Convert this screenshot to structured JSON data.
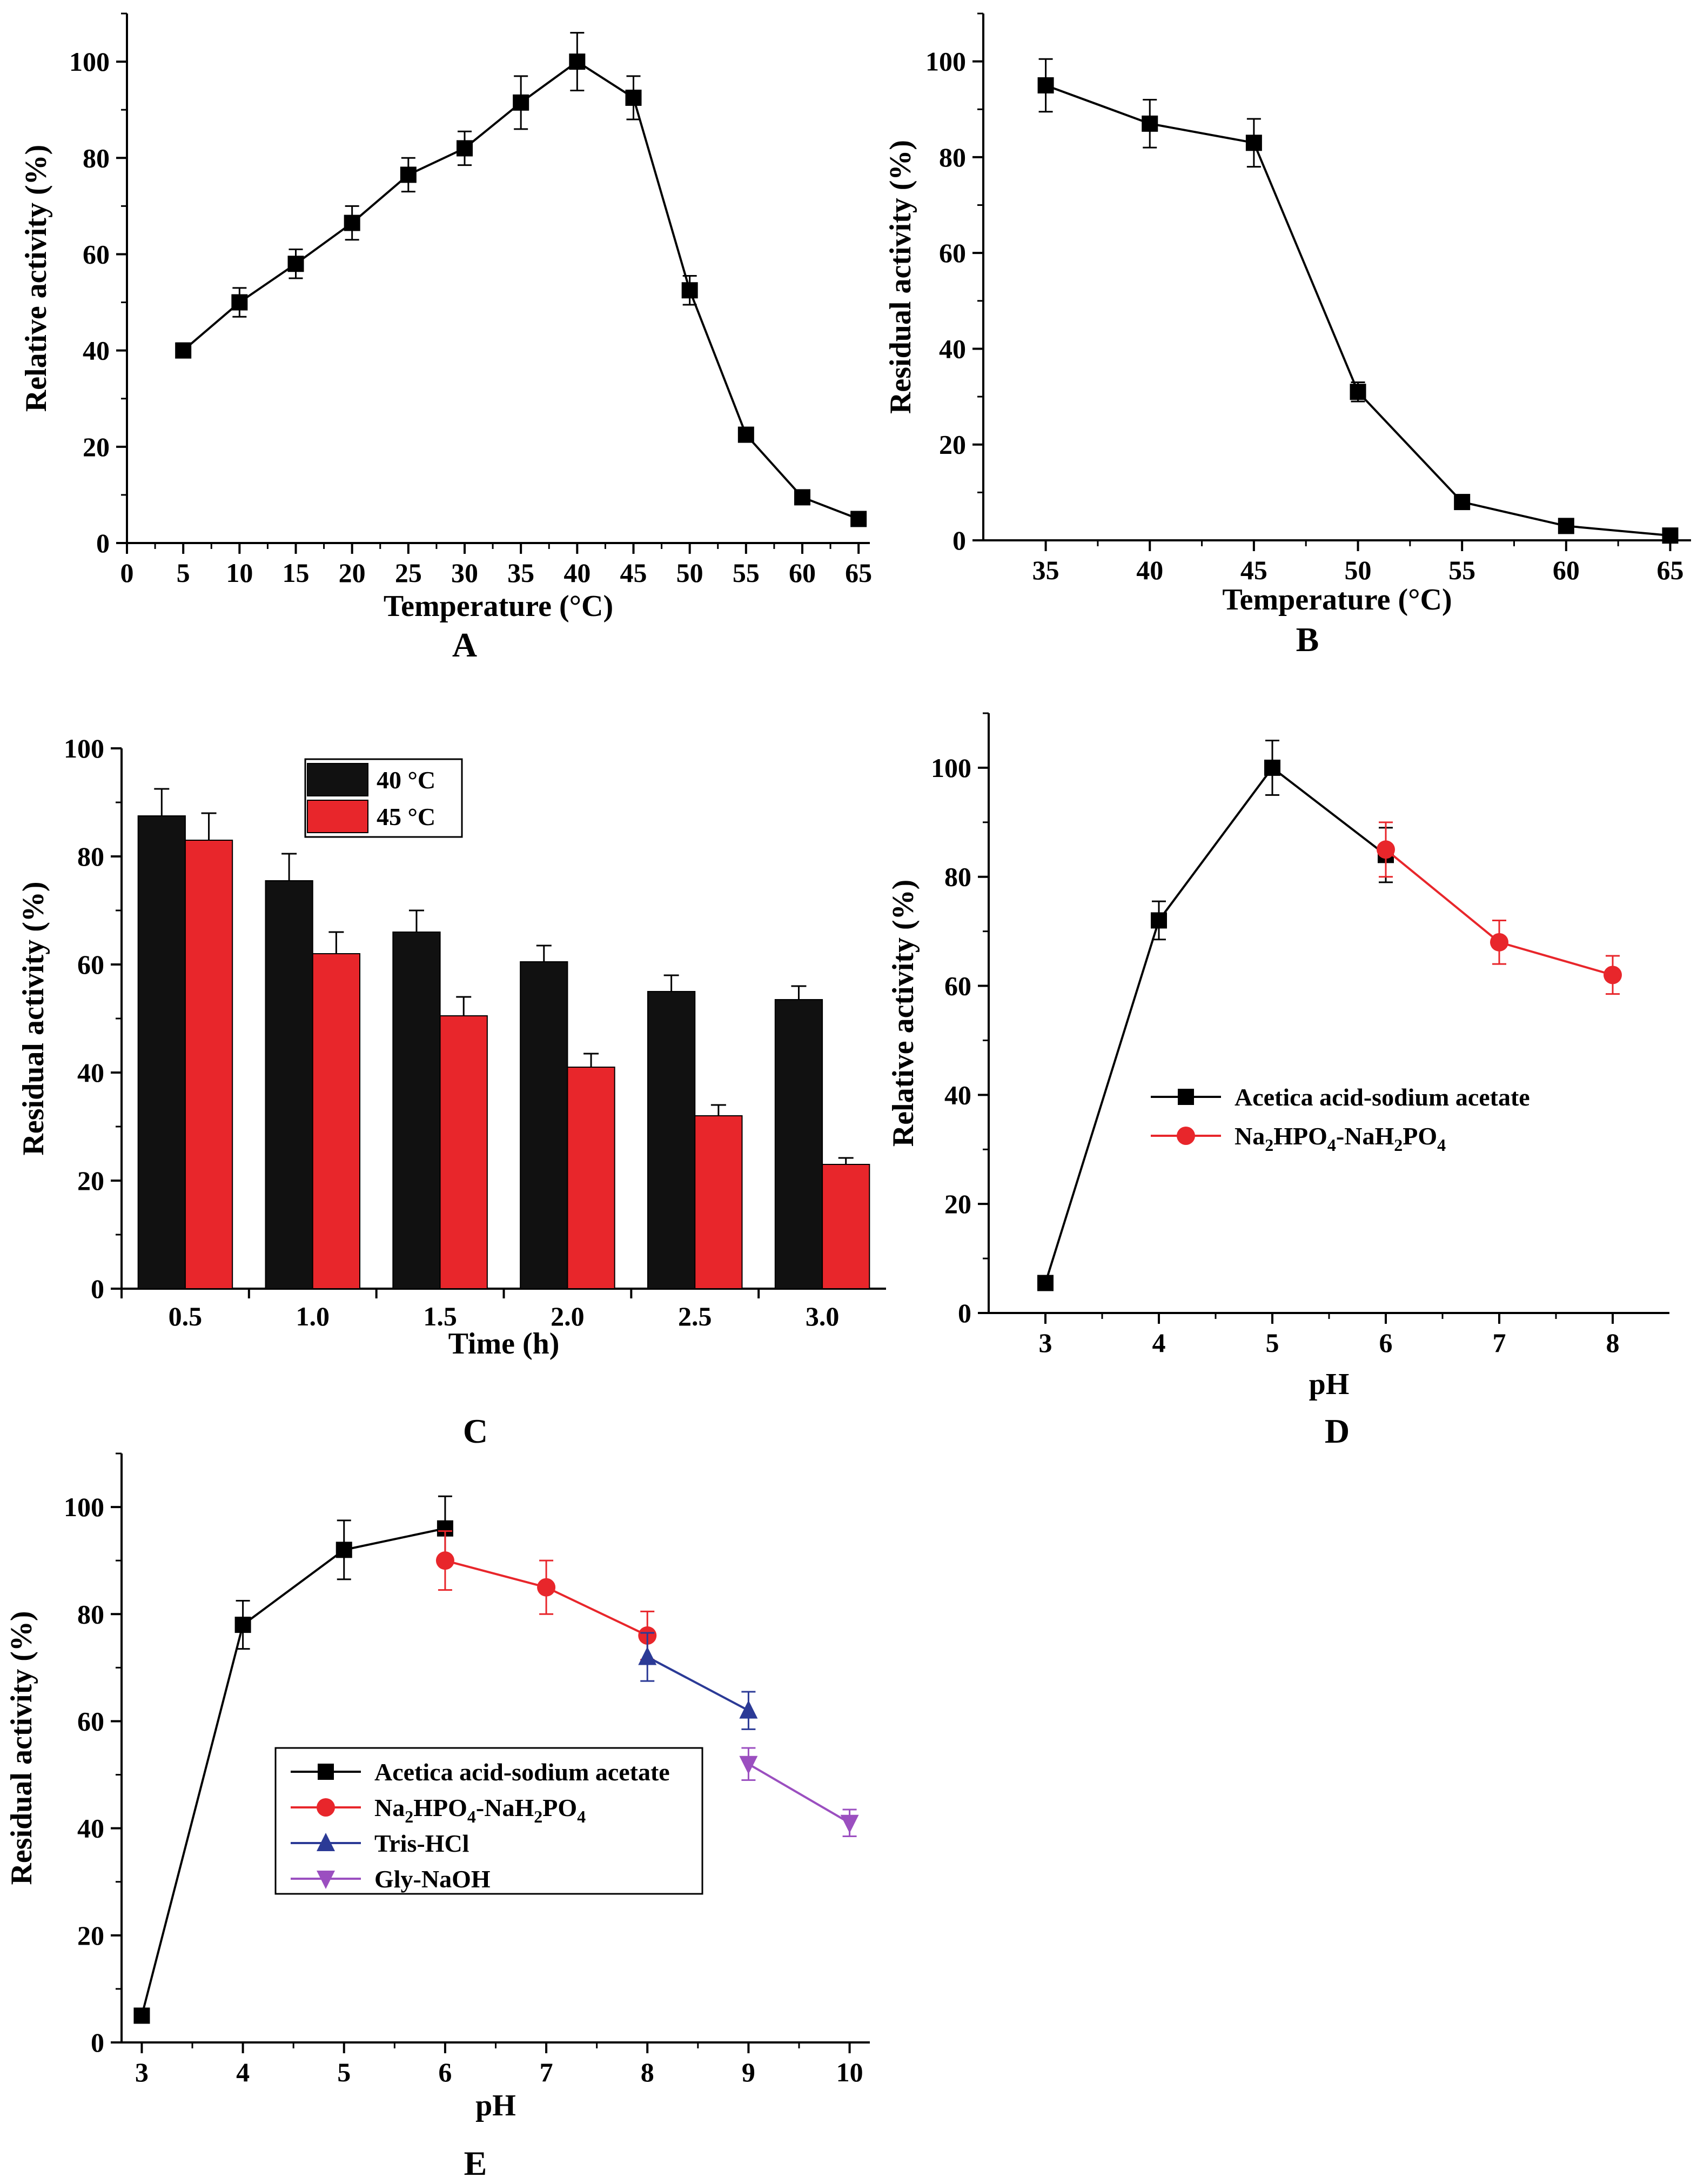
{
  "chart_data": [
    {
      "id": "A",
      "panel_label": "A",
      "type": "line",
      "xlabel": "Temperature (°C)",
      "ylabel": "Relative activity (%)",
      "xlim": [
        0,
        66
      ],
      "ylim": [
        0,
        110
      ],
      "xticks": [
        0,
        5,
        10,
        15,
        20,
        25,
        30,
        35,
        40,
        45,
        50,
        55,
        60,
        65
      ],
      "yticks": [
        0,
        20,
        40,
        60,
        80,
        100
      ],
      "series": [
        {
          "name": "Relative activity",
          "color": "#000000",
          "marker": "square",
          "x": [
            5,
            10,
            15,
            20,
            25,
            30,
            35,
            40,
            45,
            50,
            55,
            60,
            65
          ],
          "y": [
            40,
            50,
            58,
            66.5,
            76.5,
            82,
            91.5,
            100,
            92.5,
            52.5,
            22.5,
            9.5,
            5
          ],
          "err": [
            1.5,
            3,
            3,
            3.5,
            3.5,
            3.5,
            5.5,
            6,
            4.5,
            3,
            0,
            0,
            0
          ]
        }
      ]
    },
    {
      "id": "B",
      "panel_label": "B",
      "type": "line",
      "xlabel": "Temperature (°C)",
      "ylabel": "Residual activity (%)",
      "xlim": [
        32,
        66
      ],
      "ylim": [
        0,
        110
      ],
      "xticks": [
        35,
        40,
        45,
        50,
        55,
        60,
        65
      ],
      "yticks": [
        0,
        20,
        40,
        60,
        80,
        100
      ],
      "series": [
        {
          "name": "Residual activity",
          "color": "#000000",
          "marker": "square",
          "x": [
            35,
            40,
            45,
            50,
            55,
            60,
            65
          ],
          "y": [
            95,
            87,
            83,
            31,
            8,
            3,
            1
          ],
          "err": [
            5.5,
            5,
            5,
            2,
            0,
            0,
            0
          ]
        }
      ]
    },
    {
      "id": "C",
      "panel_label": "C",
      "type": "bar",
      "xlabel": "Time (h)",
      "ylabel": "Residual activity (%)",
      "ylim": [
        0,
        100
      ],
      "yticks": [
        0,
        20,
        40,
        60,
        80,
        100
      ],
      "categories": [
        "0.5",
        "1.0",
        "1.5",
        "2.0",
        "2.5",
        "3.0"
      ],
      "legend_position": "top-center",
      "series": [
        {
          "name": "40 °C",
          "color": "#111111",
          "values": [
            87.5,
            75.5,
            66,
            60.5,
            55,
            53.5
          ],
          "err": [
            5,
            5,
            4,
            3,
            3,
            2.5
          ]
        },
        {
          "name": "45 °C",
          "color": "#e8262b",
          "values": [
            83,
            62,
            50.5,
            41,
            32,
            23
          ],
          "err": [
            5,
            4,
            3.5,
            2.5,
            2,
            1.2
          ]
        }
      ]
    },
    {
      "id": "D",
      "panel_label": "D",
      "type": "line",
      "xlabel": "pH",
      "ylabel": "Relative activity (%)",
      "xlim": [
        2.5,
        8.5
      ],
      "ylim": [
        0,
        110
      ],
      "xticks": [
        3,
        4,
        5,
        6,
        7,
        8
      ],
      "yticks": [
        0,
        20,
        40,
        60,
        80,
        100
      ],
      "legend_position": "center-left",
      "series": [
        {
          "name": "Acetica acid-sodium acetate",
          "color": "#000000",
          "marker": "square",
          "x": [
            3,
            4,
            5,
            6
          ],
          "y": [
            5.5,
            72,
            100,
            84
          ],
          "err": [
            0,
            3.5,
            5,
            5
          ]
        },
        {
          "name": "Na2HPO4-NaH2PO4",
          "color": "#e8262b",
          "marker": "circle",
          "x": [
            6,
            7,
            8
          ],
          "y": [
            85,
            68,
            62
          ],
          "err": [
            5,
            4,
            3.5
          ]
        }
      ]
    },
    {
      "id": "E",
      "panel_label": "E",
      "type": "line",
      "xlabel": "pH",
      "ylabel": "Residual activity (%)",
      "xlim": [
        2.8,
        10.2
      ],
      "ylim": [
        0,
        110
      ],
      "xticks": [
        3,
        4,
        5,
        6,
        7,
        8,
        9,
        10
      ],
      "yticks": [
        0,
        20,
        40,
        60,
        80,
        100
      ],
      "legend_position": "center-left",
      "series": [
        {
          "name": "Acetica acid-sodium acetate",
          "color": "#000000",
          "marker": "square",
          "x": [
            3,
            4,
            5,
            6
          ],
          "y": [
            5,
            78,
            92,
            96
          ],
          "err": [
            0,
            4.5,
            5.5,
            6
          ]
        },
        {
          "name": "Na2HPO4-NaH2PO4",
          "color": "#e8262b",
          "marker": "circle",
          "x": [
            6,
            7,
            8
          ],
          "y": [
            90,
            85,
            76
          ],
          "err": [
            5.5,
            5,
            4.5
          ]
        },
        {
          "name": "Tris-HCl",
          "color": "#2b3a96",
          "marker": "triangle-up",
          "x": [
            8,
            9
          ],
          "y": [
            72,
            62
          ],
          "err": [
            4.5,
            3.5
          ]
        },
        {
          "name": "Gly-NaOH",
          "color": "#9b4fc0",
          "marker": "triangle-down",
          "x": [
            9,
            10
          ],
          "y": [
            52,
            41
          ],
          "err": [
            3,
            2.5
          ]
        }
      ]
    }
  ]
}
